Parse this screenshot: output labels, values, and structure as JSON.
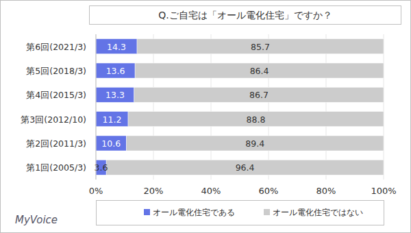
{
  "chart_data": {
    "type": "bar",
    "title": "Q.ご自宅は「オール電化住宅」ですか？",
    "logo": "MyVoice",
    "orientation": "horizontal",
    "stacked": true,
    "data_labels": true,
    "grid": true,
    "legend": "bottom",
    "categories": [
      "第6回(2021/3)",
      "第5回(2018/3)",
      "第4回(2015/3)",
      "第3回(2012/10)",
      "第2回(2011/3)",
      "第1回(2005/3)"
    ],
    "series": [
      {
        "name": "オール電化住宅である",
        "color": "#6374e6",
        "values": [
          14.3,
          13.6,
          13.3,
          11.2,
          10.6,
          3.6
        ]
      },
      {
        "name": "オール電化住宅ではない",
        "color": "#cccccc",
        "values": [
          85.7,
          86.4,
          86.7,
          88.8,
          89.4,
          96.4
        ]
      }
    ],
    "xlim": [
      0,
      100
    ],
    "xticks": [
      {
        "value": 0,
        "label": "0%"
      },
      {
        "value": 20,
        "label": "20%"
      },
      {
        "value": 40,
        "label": "40%"
      },
      {
        "value": 60,
        "label": "60%"
      },
      {
        "value": 80,
        "label": "80%"
      },
      {
        "value": 100,
        "label": "100%"
      }
    ]
  }
}
